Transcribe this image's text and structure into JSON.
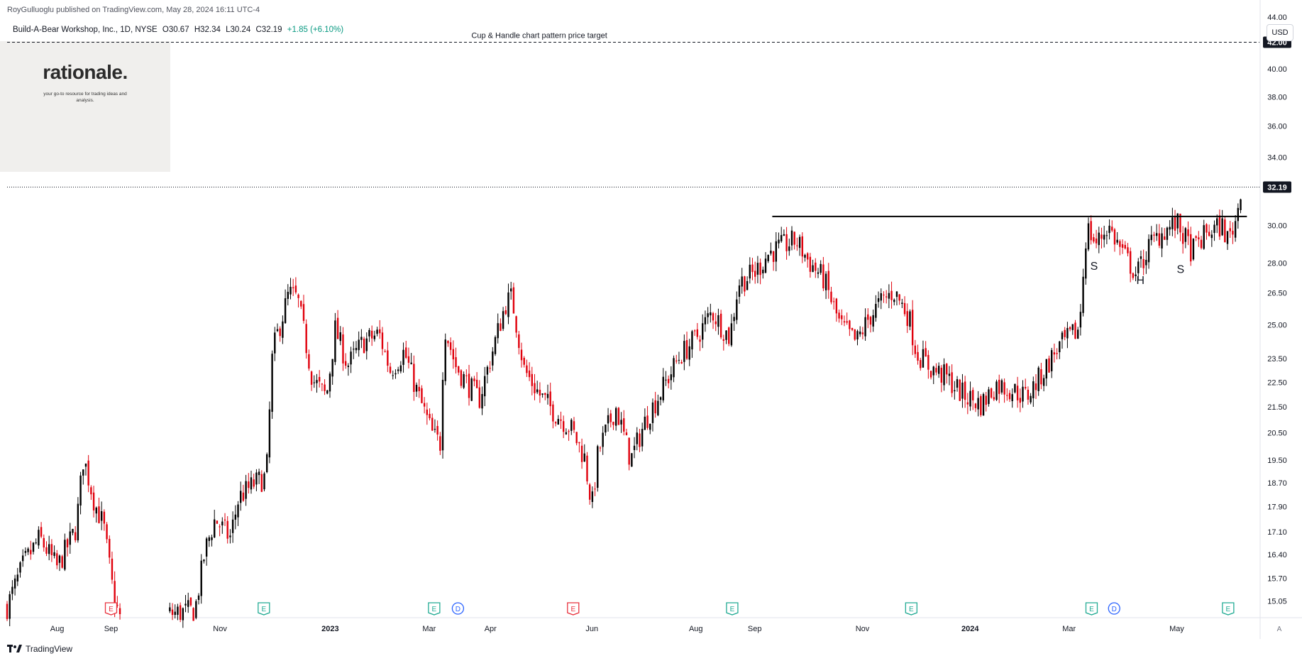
{
  "header": {
    "published": "RoyGulluoglu published on TradingView.com, May 28, 2024 16:11 UTC-4",
    "symbol": "Build-A-Bear Workshop, Inc., 1D, NYSE",
    "open": "O30.67",
    "high": "H32.34",
    "low": "L30.24",
    "close": "C32.19",
    "change": "+1.85 (+6.10%)"
  },
  "logo": {
    "wordmark": "rationale.",
    "tagline": "your go-to resource for trading ideas and analysis."
  },
  "currency": "USD",
  "footer": {
    "brand": "TradingView"
  },
  "auto_label": "A",
  "colors": {
    "up": "#000000",
    "down": "#e0000c",
    "earnings_past": "#e8333f",
    "earnings_future": "#22ab94",
    "dividend": "#2962ff",
    "axis_text": "#131722"
  },
  "chart_data": {
    "type": "candlestick",
    "ylim": [
      14.6,
      44.8
    ],
    "y_scale": "log",
    "y_ticks": [
      44.0,
      42.0,
      40.0,
      38.0,
      36.0,
      34.0,
      32.19,
      30.0,
      28.0,
      26.5,
      25.0,
      23.5,
      22.5,
      21.5,
      20.5,
      19.5,
      18.7,
      17.9,
      17.1,
      16.4,
      15.7,
      15.05
    ],
    "y_tick_labels": [
      "44.00",
      "42.00",
      "40.00",
      "38.00",
      "36.00",
      "34.00",
      "32.19",
      "30.00",
      "28.00",
      "26.50",
      "25.00",
      "23.50",
      "22.50",
      "21.50",
      "20.50",
      "19.50",
      "18.70",
      "17.90",
      "17.10",
      "16.40",
      "15.70",
      "15.05"
    ],
    "x_labels": [
      {
        "t": 0.04,
        "label": "Aug",
        "bold": false
      },
      {
        "t": 0.083,
        "label": "Sep",
        "bold": false
      },
      {
        "t": 0.17,
        "label": "Nov",
        "bold": false
      },
      {
        "t": 0.258,
        "label": "2023",
        "bold": true
      },
      {
        "t": 0.337,
        "label": "Mar",
        "bold": false
      },
      {
        "t": 0.386,
        "label": "Apr",
        "bold": false
      },
      {
        "t": 0.467,
        "label": "Jun",
        "bold": false
      },
      {
        "t": 0.55,
        "label": "Aug",
        "bold": false
      },
      {
        "t": 0.597,
        "label": "Sep",
        "bold": false
      },
      {
        "t": 0.683,
        "label": "Nov",
        "bold": false
      },
      {
        "t": 0.769,
        "label": "2024",
        "bold": true
      },
      {
        "t": 0.848,
        "label": "Mar",
        "bold": false
      },
      {
        "t": 0.934,
        "label": "May",
        "bold": false
      }
    ],
    "price_path": [
      [
        0.0,
        14.9
      ],
      [
        0.013,
        16.1
      ],
      [
        0.026,
        16.9
      ],
      [
        0.04,
        16.0
      ],
      [
        0.055,
        17.2
      ],
      [
        0.061,
        19.6
      ],
      [
        0.07,
        18.0
      ],
      [
        0.077,
        17.3
      ],
      [
        0.085,
        15.2
      ],
      [
        0.09,
        14.6
      ],
      [
        0.13,
        14.7
      ],
      [
        0.15,
        14.8
      ],
      [
        0.158,
        16.5
      ],
      [
        0.166,
        17.5
      ],
      [
        0.178,
        16.9
      ],
      [
        0.185,
        18.2
      ],
      [
        0.198,
        18.7
      ],
      [
        0.207,
        18.9
      ],
      [
        0.212,
        23.8
      ],
      [
        0.225,
        26.5
      ],
      [
        0.232,
        26.2
      ],
      [
        0.244,
        22.6
      ],
      [
        0.255,
        21.9
      ],
      [
        0.262,
        24.8
      ],
      [
        0.272,
        23.2
      ],
      [
        0.284,
        24.2
      ],
      [
        0.297,
        24.6
      ],
      [
        0.306,
        23.0
      ],
      [
        0.317,
        23.8
      ],
      [
        0.328,
        22.0
      ],
      [
        0.34,
        20.4
      ],
      [
        0.346,
        20.1
      ],
      [
        0.349,
        25.0
      ],
      [
        0.358,
        23.2
      ],
      [
        0.368,
        22.4
      ],
      [
        0.377,
        21.8
      ],
      [
        0.386,
        23.5
      ],
      [
        0.398,
        26.0
      ],
      [
        0.403,
        26.3
      ],
      [
        0.413,
        23.0
      ],
      [
        0.425,
        22.0
      ],
      [
        0.437,
        21.3
      ],
      [
        0.45,
        20.7
      ],
      [
        0.461,
        19.6
      ],
      [
        0.467,
        17.9
      ],
      [
        0.472,
        19.8
      ],
      [
        0.486,
        21.5
      ],
      [
        0.498,
        19.5
      ],
      [
        0.51,
        21.0
      ],
      [
        0.524,
        22.3
      ],
      [
        0.537,
        23.6
      ],
      [
        0.55,
        24.4
      ],
      [
        0.563,
        25.6
      ],
      [
        0.577,
        24.4
      ],
      [
        0.584,
        27.0
      ],
      [
        0.597,
        27.5
      ],
      [
        0.608,
        28.5
      ],
      [
        0.617,
        28.8
      ],
      [
        0.63,
        29.2
      ],
      [
        0.64,
        28.1
      ],
      [
        0.652,
        27.2
      ],
      [
        0.665,
        25.0
      ],
      [
        0.678,
        24.2
      ],
      [
        0.688,
        25.3
      ],
      [
        0.697,
        26.0
      ],
      [
        0.708,
        26.6
      ],
      [
        0.72,
        25.4
      ],
      [
        0.726,
        23.8
      ],
      [
        0.737,
        23.1
      ],
      [
        0.75,
        22.7
      ],
      [
        0.763,
        22.0
      ],
      [
        0.778,
        21.6
      ],
      [
        0.79,
        22.4
      ],
      [
        0.802,
        22.2
      ],
      [
        0.814,
        21.9
      ],
      [
        0.826,
        22.8
      ],
      [
        0.838,
        23.9
      ],
      [
        0.846,
        24.3
      ],
      [
        0.856,
        24.8
      ],
      [
        0.862,
        29.9
      ],
      [
        0.87,
        29.0
      ],
      [
        0.879,
        30.0
      ],
      [
        0.89,
        28.6
      ],
      [
        0.902,
        27.4
      ],
      [
        0.912,
        28.9
      ],
      [
        0.923,
        29.7
      ],
      [
        0.934,
        30.1
      ],
      [
        0.946,
        28.6
      ],
      [
        0.958,
        29.6
      ],
      [
        0.97,
        30.0
      ],
      [
        0.975,
        29.2
      ],
      [
        0.982,
        30.5
      ],
      [
        0.985,
        32.19
      ]
    ],
    "resistance": {
      "price": 30.5,
      "t_start": 0.611,
      "t_end": 0.99
    },
    "last_price": 32.19,
    "target": {
      "price": 42.0,
      "label": "Cup & Handle chart pattern price target"
    },
    "pattern_labels": [
      {
        "text": "S",
        "t": 0.868,
        "price": 27.65
      },
      {
        "text": "H",
        "t": 0.905,
        "price": 26.95
      },
      {
        "text": "S",
        "t": 0.937,
        "price": 27.5
      }
    ],
    "events": [
      {
        "t": 0.083,
        "type": "earnings",
        "letter": "E",
        "past": true
      },
      {
        "t": 0.205,
        "type": "earnings",
        "letter": "E",
        "past": false
      },
      {
        "t": 0.341,
        "type": "earnings",
        "letter": "E",
        "past": false
      },
      {
        "t": 0.36,
        "type": "dividend",
        "letter": "D",
        "past": false
      },
      {
        "t": 0.452,
        "type": "earnings",
        "letter": "E",
        "past": true
      },
      {
        "t": 0.579,
        "type": "earnings",
        "letter": "E",
        "past": false
      },
      {
        "t": 0.722,
        "type": "earnings",
        "letter": "E",
        "past": false
      },
      {
        "t": 0.866,
        "type": "earnings",
        "letter": "E",
        "past": false
      },
      {
        "t": 0.884,
        "type": "dividend",
        "letter": "D",
        "past": false
      },
      {
        "t": 0.975,
        "type": "earnings",
        "letter": "E",
        "past": false
      }
    ]
  }
}
